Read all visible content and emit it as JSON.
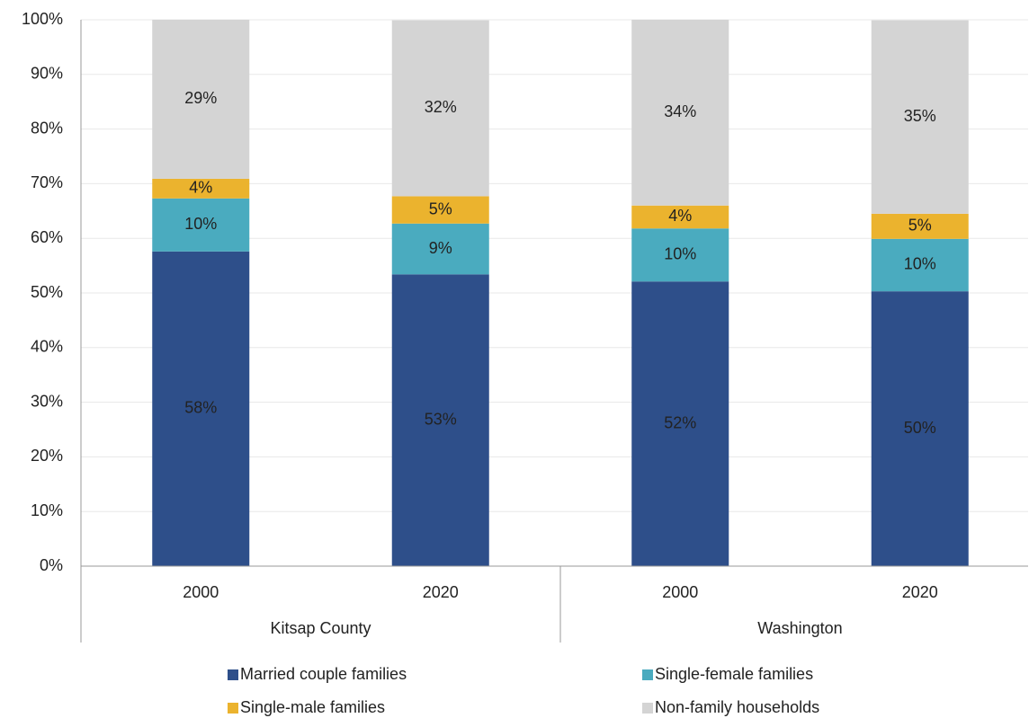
{
  "chart_data": {
    "type": "stacked_bar",
    "categories": [
      "2000",
      "2020",
      "2000",
      "2020"
    ],
    "groups": [
      "Kitsap County",
      "Washington"
    ],
    "series": [
      {
        "name": "Married couple families",
        "color": "#2e4f8a",
        "label_color": "#ffffff",
        "values": [
          57.6,
          53.4,
          52.1,
          50.3
        ],
        "value_labels": [
          "58%",
          "53%",
          "52%",
          "50%"
        ]
      },
      {
        "name": "Single-female families",
        "color": "#4aabbf",
        "label_color": "#ffffff",
        "values": [
          9.7,
          9.3,
          9.7,
          9.6
        ],
        "value_labels": [
          "10%",
          "9%",
          "10%",
          "10%"
        ]
      },
      {
        "name": "Single-male families",
        "color": "#ebb32e",
        "label_color": "#222222",
        "values": [
          3.6,
          5.0,
          4.2,
          4.6
        ],
        "value_labels": [
          "4%",
          "5%",
          "4%",
          "5%"
        ]
      },
      {
        "name": "Non-family households",
        "color": "#d4d4d4",
        "label_color": "#222222",
        "values": [
          29.1,
          32.2,
          34.0,
          35.4
        ],
        "value_labels": [
          "29%",
          "32%",
          "34%",
          "35%"
        ]
      }
    ],
    "ylim": [
      0,
      100
    ],
    "yticks": [
      {
        "value": 0,
        "label": "0%"
      },
      {
        "value": 10,
        "label": "10%"
      },
      {
        "value": 20,
        "label": "20%"
      },
      {
        "value": 30,
        "label": "30%"
      },
      {
        "value": 40,
        "label": "40%"
      },
      {
        "value": 50,
        "label": "50%"
      },
      {
        "value": 60,
        "label": "60%"
      },
      {
        "value": 70,
        "label": "70%"
      },
      {
        "value": 80,
        "label": "80%"
      },
      {
        "value": 90,
        "label": "90%"
      },
      {
        "value": 100,
        "label": "100%"
      }
    ],
    "grid": true
  }
}
